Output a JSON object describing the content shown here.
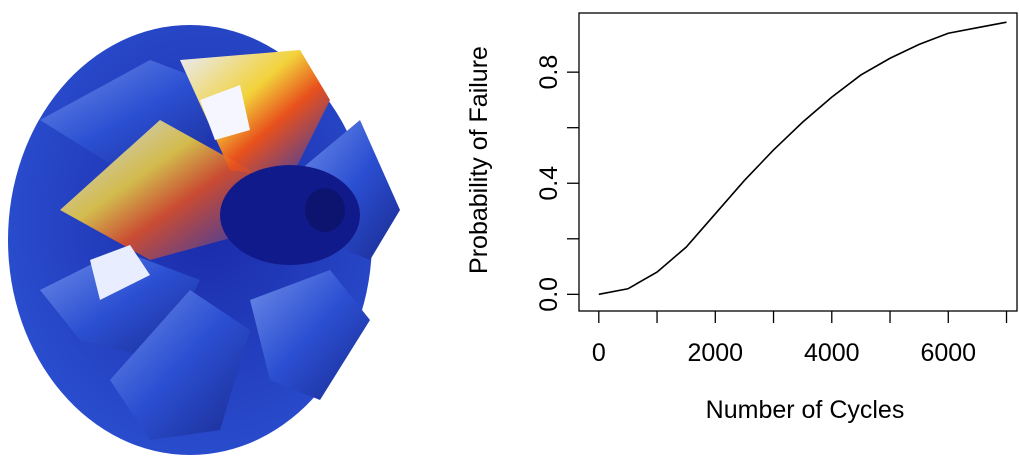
{
  "chart_data": {
    "type": "line",
    "xlabel": "Number of Cycles",
    "ylabel": "Probability of Failure",
    "x": [
      0,
      500,
      1000,
      1500,
      2000,
      2500,
      3000,
      3500,
      4000,
      4500,
      5000,
      5500,
      6000,
      6500,
      7000
    ],
    "series": [
      {
        "color": "#000000",
        "values": [
          0,
          0.02,
          0.08,
          0.17,
          0.29,
          0.41,
          0.52,
          0.62,
          0.71,
          0.79,
          0.85,
          0.9,
          0.94,
          0.96,
          0.98
        ]
      }
    ],
    "xlim": [
      -340,
      7180
    ],
    "ylim": [
      -0.06,
      1.013
    ],
    "xticks": [
      0,
      2000,
      4000,
      6000
    ],
    "xminor_ticks": [
      1000,
      3000,
      5000,
      7000
    ],
    "yticks": [
      {
        "value": 0,
        "label": "0.0"
      },
      {
        "value": 0.4,
        "label": "0.4"
      },
      {
        "value": 0.8,
        "label": "0.8"
      }
    ],
    "yminor_ticks": [
      0.2,
      0.6
    ]
  }
}
